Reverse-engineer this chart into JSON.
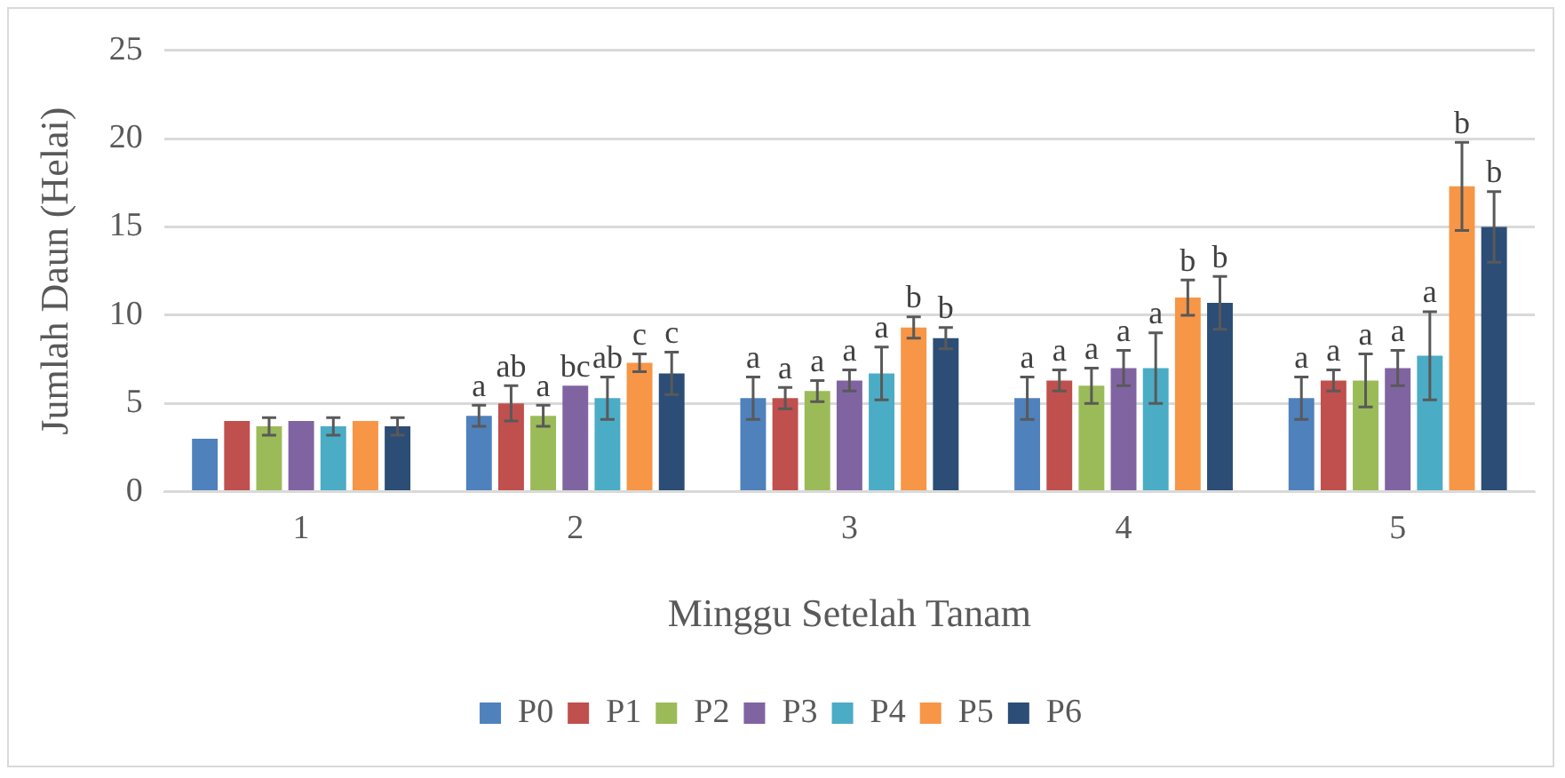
{
  "chart_data": {
    "type": "bar",
    "xlabel": "Minggu Setelah Tanam",
    "ylabel": "Jumlah Daun (Helai)",
    "categories": [
      "1",
      "2",
      "3",
      "4",
      "5"
    ],
    "ylim": [
      0,
      25
    ],
    "yticks": [
      0,
      5,
      10,
      15,
      20,
      25
    ],
    "grid": "y",
    "legend": "bottom",
    "series": [
      {
        "name": "P0",
        "color": "#4f81bd",
        "values": [
          3.0,
          4.3,
          5.3,
          5.3,
          5.3
        ],
        "errors": [
          null,
          0.6,
          1.2,
          1.2,
          1.2
        ],
        "value_labels": [
          null,
          "a",
          "a",
          "a",
          "a"
        ]
      },
      {
        "name": "P1",
        "color": "#c0504d",
        "values": [
          4.0,
          5.0,
          5.3,
          6.3,
          6.3
        ],
        "errors": [
          null,
          1.0,
          0.6,
          0.6,
          0.6
        ],
        "value_labels": [
          null,
          "ab",
          "a",
          "a",
          "a"
        ]
      },
      {
        "name": "P2",
        "color": "#9bbb59",
        "values": [
          3.7,
          4.3,
          5.7,
          6.0,
          6.3
        ],
        "errors": [
          0.5,
          0.6,
          0.6,
          1.0,
          1.5
        ],
        "value_labels": [
          null,
          "a",
          "a",
          "a",
          "a"
        ]
      },
      {
        "name": "P3",
        "color": "#8064a2",
        "values": [
          4.0,
          6.0,
          6.3,
          7.0,
          7.0
        ],
        "errors": [
          null,
          null,
          0.6,
          1.0,
          1.0
        ],
        "value_labels": [
          null,
          "bc",
          "a",
          "a",
          "a"
        ]
      },
      {
        "name": "P4",
        "color": "#4bacc6",
        "values": [
          3.7,
          5.3,
          6.7,
          7.0,
          7.7
        ],
        "errors": [
          0.5,
          1.2,
          1.5,
          2.0,
          2.5
        ],
        "value_labels": [
          null,
          "ab",
          "a",
          "a",
          "a"
        ]
      },
      {
        "name": "P5",
        "color": "#f79646",
        "values": [
          4.0,
          7.3,
          9.3,
          11.0,
          17.3
        ],
        "errors": [
          null,
          0.5,
          0.6,
          1.0,
          2.5
        ],
        "value_labels": [
          null,
          "c",
          "b",
          "b",
          "b"
        ]
      },
      {
        "name": "P6",
        "color": "#2c4d75",
        "values": [
          3.7,
          6.7,
          8.7,
          10.7,
          15.0
        ],
        "errors": [
          0.5,
          1.2,
          0.6,
          1.5,
          2.0
        ],
        "value_labels": [
          null,
          "c",
          "b",
          "b",
          "b"
        ]
      }
    ]
  }
}
